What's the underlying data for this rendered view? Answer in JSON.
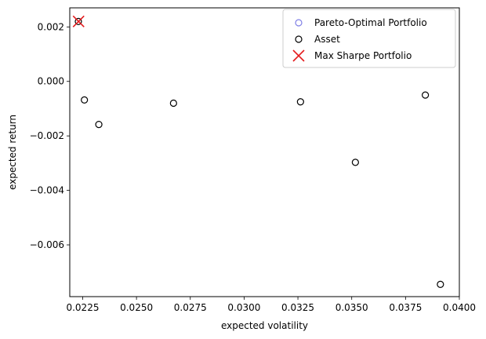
{
  "chart_data": {
    "type": "scatter",
    "xlabel": "expected volatility",
    "ylabel": "expected return",
    "xlim": [
      0.0219,
      0.04
    ],
    "ylim": [
      -0.0079,
      0.0027
    ],
    "xticks": [
      0.0225,
      0.025,
      0.0275,
      0.03,
      0.0325,
      0.035,
      0.0375,
      0.04
    ],
    "xtick_labels": [
      "0.0225",
      "0.0250",
      "0.0275",
      "0.0300",
      "0.0325",
      "0.0350",
      "0.0375",
      "0.0400"
    ],
    "yticks": [
      0.002,
      0.0,
      -0.002,
      -0.004,
      -0.006
    ],
    "ytick_labels": [
      "0.002",
      "0.000",
      "−0.002",
      "−0.004",
      "−0.006"
    ],
    "grid": false,
    "legend_position": "top-right",
    "series": [
      {
        "name": "Pareto-Optimal Portfolio",
        "marker": "open-circle",
        "color": "#8080e6",
        "points": []
      },
      {
        "name": "Asset",
        "marker": "open-circle",
        "color": "#000000",
        "points": [
          {
            "x": 0.0223,
            "y": 0.0022
          },
          {
            "x": 0.02258,
            "y": -0.00068
          },
          {
            "x": 0.02325,
            "y": -0.00158
          },
          {
            "x": 0.02672,
            "y": -0.0008
          },
          {
            "x": 0.03262,
            "y": -0.00075
          },
          {
            "x": 0.03517,
            "y": -0.00297
          },
          {
            "x": 0.03842,
            "y": -0.0005
          },
          {
            "x": 0.03912,
            "y": -0.00745
          }
        ]
      },
      {
        "name": "Max Sharpe Portfolio",
        "marker": "x",
        "color": "#e41a1c",
        "points": [
          {
            "x": 0.02231,
            "y": 0.0022
          }
        ]
      }
    ]
  }
}
